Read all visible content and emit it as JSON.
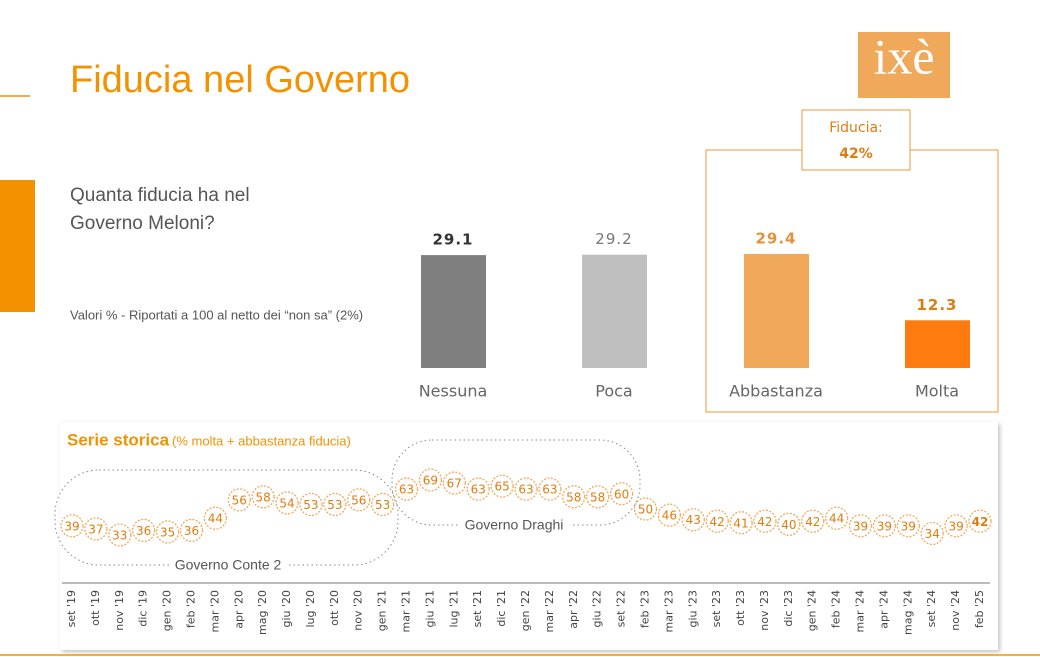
{
  "header": {
    "title": "Fiducia nel Governo",
    "logo": "ixè"
  },
  "question": [
    "Quanta fiducia ha nel",
    "Governo Meloni?"
  ],
  "note": "Valori % - Riportati a 100 al netto dei “non sa” (2%)",
  "chart_data": [
    {
      "type": "bar",
      "categories": [
        "Nessuna",
        "Poca",
        "Abbastanza",
        "Molta"
      ],
      "values": [
        29.1,
        29.2,
        29.4,
        12.3
      ],
      "colors": [
        "#7f7f7f",
        "#bfbfbf",
        "#f0a95a",
        "#fd7b0f"
      ],
      "annotation": {
        "label": "Fiducia:",
        "value_label": "42%"
      }
    },
    {
      "type": "line",
      "title": "Serie storica",
      "subtitle": "(% molta + abbastanza fiducia)",
      "categories": [
        "set '19",
        "ott '19",
        "nov '19",
        "dic '19",
        "gen '20",
        "feb '20",
        "mar '20",
        "apr '20",
        "mag '20",
        "giu '20",
        "lug '20",
        "ott '20",
        "nov '20",
        "gen '21",
        "mar '21",
        "giu '21",
        "lug '21",
        "set '21",
        "dic '21",
        "gen '22",
        "mar '22",
        "apr '22",
        "giu '22",
        "set '22",
        "feb '23",
        "mar '23",
        "giu '23",
        "set '23",
        "ott '23",
        "nov '23",
        "dic '23",
        "gen '24",
        "feb '24",
        "mar '24",
        "apr '24",
        "mag '24",
        "set '24",
        "nov '24",
        "feb '25"
      ],
      "values": [
        39,
        37,
        33,
        36,
        35,
        36,
        44,
        56,
        58,
        54,
        53,
        53,
        56,
        53,
        63,
        69,
        67,
        63,
        65,
        63,
        63,
        58,
        58,
        60,
        50,
        46,
        43,
        42,
        41,
        42,
        40,
        42,
        44,
        39,
        39,
        39,
        34,
        39,
        42
      ],
      "color": "#f0a95a",
      "annotations": [
        "Governo Conte 2",
        "Governo Draghi"
      ]
    }
  ]
}
